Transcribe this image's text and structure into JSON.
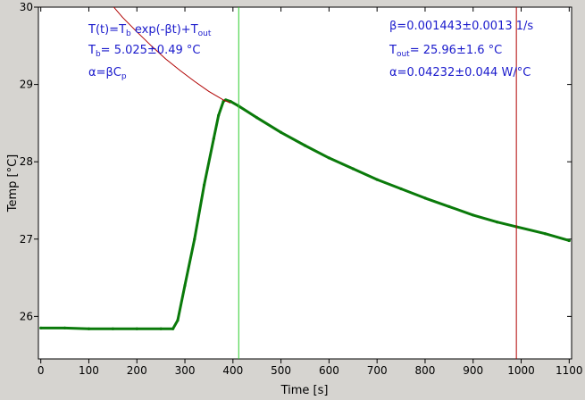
{
  "colors": {
    "window_bg": "#d6d4d0",
    "plot_bg": "#ffffff",
    "data": "#0a7a0a",
    "fit": "#b00000",
    "left_marker": "#2ecc2e",
    "right_marker": "#b00000",
    "annotation": "#1a1acc"
  },
  "annotations": {
    "model_prefix": "T(t)=T",
    "model_sub_b": "b",
    "model_mid": " exp(-βt)+T",
    "model_sub_out": "out",
    "tb_T": "T",
    "tb_sub": "b",
    "tb_value": "= 5.025±0.49 °C",
    "alpha_def_prefix": "α=βC",
    "alpha_def_sub": "p",
    "beta": "β=0.001443±0.0013 1/s",
    "tout_T": "T",
    "tout_sub": "out",
    "tout_value": "= 25.96±1.6 °C",
    "alpha": "α=0.04232±0.044 W/°C"
  },
  "chart_data": {
    "type": "line",
    "xlabel": "Time [s]",
    "ylabel": "Temp [°C]",
    "xlim": [
      -5,
      1105
    ],
    "ylim": [
      25.45,
      30.0
    ],
    "xticks": [
      0,
      100,
      200,
      300,
      400,
      500,
      600,
      700,
      800,
      900,
      1000,
      1100
    ],
    "yticks": [
      26,
      27,
      28,
      29,
      30
    ],
    "grid": false,
    "markers": {
      "left": 412,
      "right": 990
    },
    "series": [
      {
        "style": "measured",
        "x": [
          0,
          50,
          100,
          150,
          200,
          250,
          275,
          285,
          300,
          320,
          340,
          360,
          370,
          380,
          385,
          395,
          412,
          450,
          500,
          550,
          600,
          650,
          700,
          750,
          800,
          850,
          900,
          950,
          990,
          1050,
          1100
        ],
        "y": [
          25.85,
          25.85,
          25.84,
          25.84,
          25.84,
          25.84,
          25.84,
          25.95,
          26.4,
          27.0,
          27.7,
          28.3,
          28.6,
          28.78,
          28.8,
          28.78,
          28.72,
          28.57,
          28.38,
          28.21,
          28.05,
          27.91,
          27.77,
          27.65,
          27.53,
          27.42,
          27.31,
          27.22,
          27.16,
          27.07,
          26.98
        ]
      },
      {
        "style": "fit",
        "x": [
          145,
          170,
          200,
          230,
          260,
          290,
          320,
          350,
          380,
          395
        ],
        "y": [
          30.05,
          29.87,
          29.68,
          29.5,
          29.33,
          29.18,
          29.04,
          28.91,
          28.8,
          28.76
        ]
      }
    ]
  }
}
